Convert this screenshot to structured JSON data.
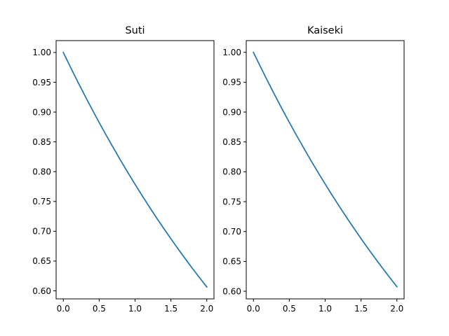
{
  "chart_data": [
    {
      "type": "line",
      "title": "Suti",
      "xlabel": "",
      "ylabel": "",
      "xlim": [
        -0.1,
        2.1
      ],
      "ylim": [
        0.5865,
        1.0199
      ],
      "xticks": [
        0.0,
        0.5,
        1.0,
        1.5,
        2.0
      ],
      "xtick_labels": [
        "0.0",
        "0.5",
        "1.0",
        "1.5",
        "2.0"
      ],
      "yticks": [
        0.6,
        0.65,
        0.7,
        0.75,
        0.8,
        0.85,
        0.9,
        0.95,
        1.0
      ],
      "ytick_labels": [
        "0.60",
        "0.65",
        "0.70",
        "0.75",
        "0.80",
        "0.85",
        "0.90",
        "0.95",
        "1.00"
      ],
      "grid": false,
      "series": [
        {
          "color": "#1f77b4",
          "x": [
            0.0,
            0.1,
            0.2,
            0.3,
            0.4,
            0.5,
            0.6,
            0.7,
            0.8,
            0.9,
            1.0,
            1.1,
            1.2,
            1.3,
            1.4,
            1.5,
            1.6,
            1.7,
            1.8,
            1.9,
            2.0
          ],
          "y": [
            1.0,
            0.9753,
            0.9512,
            0.9277,
            0.9048,
            0.8825,
            0.8607,
            0.8395,
            0.8187,
            0.7985,
            0.7788,
            0.7596,
            0.7408,
            0.7225,
            0.7047,
            0.6873,
            0.6703,
            0.6538,
            0.6376,
            0.6219,
            0.6065
          ]
        }
      ]
    },
    {
      "type": "line",
      "title": "Kaiseki",
      "xlabel": "",
      "ylabel": "",
      "xlim": [
        -0.1,
        2.1
      ],
      "ylim": [
        0.5872,
        1.0196
      ],
      "xticks": [
        0.0,
        0.5,
        1.0,
        1.5,
        2.0
      ],
      "xtick_labels": [
        "0.0",
        "0.5",
        "1.0",
        "1.5",
        "2.0"
      ],
      "yticks": [
        0.6,
        0.65,
        0.7,
        0.75,
        0.8,
        0.85,
        0.9,
        0.95,
        1.0
      ],
      "ytick_labels": [
        "0.60",
        "0.65",
        "0.70",
        "0.75",
        "0.80",
        "0.85",
        "0.90",
        "0.95",
        "1.00"
      ],
      "grid": false,
      "series": [
        {
          "color": "#1f77b4",
          "x": [
            0.0,
            0.1,
            0.2,
            0.3,
            0.4,
            0.5,
            0.6,
            0.7,
            0.8,
            0.9,
            1.0,
            1.1,
            1.2,
            1.3,
            1.4,
            1.5,
            1.6,
            1.7,
            1.8,
            1.9,
            2.0
          ],
          "y": [
            1.0,
            0.9754,
            0.9513,
            0.9279,
            0.905,
            0.8828,
            0.8611,
            0.8399,
            0.8192,
            0.7991,
            0.7794,
            0.7602,
            0.7415,
            0.7233,
            0.7055,
            0.6881,
            0.6712,
            0.6547,
            0.6386,
            0.6229,
            0.6075
          ]
        }
      ]
    }
  ]
}
